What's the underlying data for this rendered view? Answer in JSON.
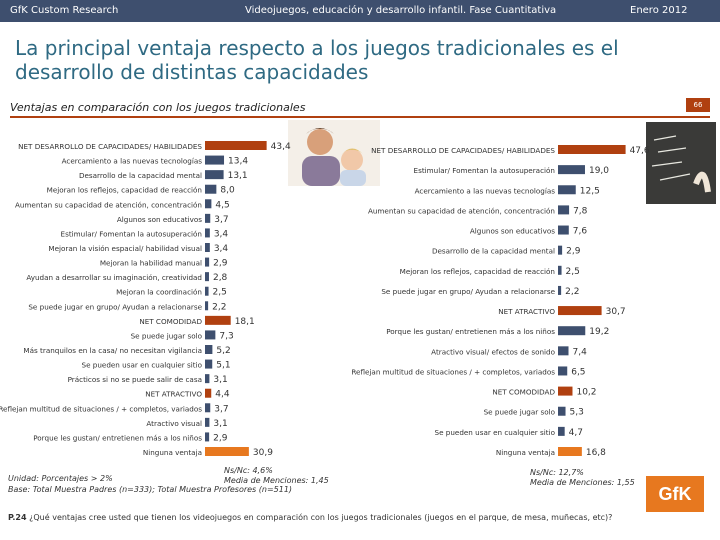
{
  "header": {
    "left": "GfK Custom Research",
    "center": "Videojuegos, educación y desarrollo infantil. Fase Cuantitativa",
    "right": "Enero 2012"
  },
  "title": "La principal ventaja respecto a los juegos tradicionales es el desarrollo de distintas capacidades",
  "section": {
    "label": "Ventajas en comparación con los juegos tradicionales",
    "page": "66"
  },
  "colors": {
    "accent": "#b04010",
    "bar_main": "#3e4f6e",
    "bar_orange": "#e7781f",
    "header": "#3e4f6e",
    "title": "#2f6a83"
  },
  "chart_data": [
    {
      "type": "bar",
      "orientation": "horizontal",
      "group": "Padres",
      "categories": [
        "NET DESARROLLO DE CAPACIDADES/ HABILIDADES",
        "Acercamiento a las nuevas tecnologías",
        "Desarrollo de la capacidad mental",
        "Mejoran los reflejos, capacidad de reacción",
        "Aumentan su capacidad de atención, concentración",
        "Algunos son educativos",
        "Estimular/ Fomentan la autosuperación",
        "Mejoran la visión espacial/ habilidad visual",
        "Mejoran la habilidad manual",
        "Ayudan a desarrollar su imaginación, creatividad",
        "Mejoran la coordinación",
        "Se puede jugar en grupo/ Ayudan a relacionarse",
        "NET COMODIDAD",
        "Se puede jugar solo",
        "Más tranquilos en la casa/ no necesitan vigilancia",
        "Se pueden usar en cualquier sitio",
        "Prácticos si no se puede salir de casa",
        "NET ATRACTIVO",
        "Reflejan multitud de situaciones / + completos, variados",
        "Atractivo visual",
        "Porque les gustan/ entretienen más a los niños",
        "Ninguna ventaja"
      ],
      "values": [
        43.4,
        13.4,
        13.1,
        8.0,
        4.5,
        3.7,
        3.4,
        3.4,
        2.9,
        2.8,
        2.5,
        2.2,
        18.1,
        7.3,
        5.2,
        5.1,
        3.1,
        4.4,
        3.7,
        3.1,
        2.9,
        30.9
      ],
      "labels": [
        "43,4",
        "13,4",
        "13,1",
        "8,0",
        "4,5",
        "3,7",
        "3,4",
        "3,4",
        "2,9",
        "2,8",
        "2,5",
        "2,2",
        "18,1",
        "7,3",
        "5,2",
        "5,1",
        "3,1",
        "4,4",
        "3,7",
        "3,1",
        "2,9",
        "30,9"
      ],
      "kinds": [
        "net",
        "item",
        "item",
        "item",
        "item",
        "item",
        "item",
        "item",
        "item",
        "item",
        "item",
        "item",
        "net",
        "item",
        "item",
        "item",
        "item",
        "net",
        "item",
        "item",
        "item",
        "none"
      ],
      "xlim": [
        0,
        60
      ]
    },
    {
      "type": "bar",
      "orientation": "horizontal",
      "group": "Profesores",
      "categories": [
        "NET DESARROLLO DE CAPACIDADES/ HABILIDADES",
        "Estimular/ Fomentan la autosuperación",
        "Acercamiento a las nuevas tecnologías",
        "Aumentan su capacidad de atención, concentración",
        "Algunos son educativos",
        "Desarrollo de la capacidad mental",
        "Mejoran los reflejos, capacidad de reacción",
        "Se puede jugar en grupo/ Ayudan a relacionarse",
        "NET ATRACTIVO",
        "Porque les gustan/ entretienen más a los niños",
        "Atractivo visual/ efectos de sonido",
        "Reflejan multitud de situaciones / + completos, variados",
        "NET COMODIDAD",
        "Se puede jugar solo",
        "Se pueden usar en cualquier sitio",
        "Ninguna ventaja"
      ],
      "values": [
        47.6,
        19.0,
        12.5,
        7.8,
        7.6,
        2.9,
        2.5,
        2.2,
        30.7,
        19.2,
        7.4,
        6.5,
        10.2,
        5.3,
        4.7,
        16.8
      ],
      "labels": [
        "47,6",
        "19,0",
        "12,5",
        "7,8",
        "7,6",
        "2,9",
        "2,5",
        "2,2",
        "30,7",
        "19,2",
        "7,4",
        "6,5",
        "10,2",
        "5,3",
        "4,7",
        "16,8"
      ],
      "kinds": [
        "net",
        "item",
        "item",
        "item",
        "item",
        "item",
        "item",
        "item",
        "net",
        "item",
        "item",
        "item",
        "net",
        "item",
        "item",
        "none"
      ],
      "xlim": [
        0,
        60
      ]
    }
  ],
  "notes": {
    "ns_left_1": "Ns/Nc: 4,6%",
    "ns_left_2": "Media de Menciones: 1,45",
    "ns_right_1": "Ns/Nc: 12,7%",
    "ns_right_2": "Media de Menciones: 1,55",
    "unit": "Unidad: Porcentajes",
    "threshold": "> 2%",
    "base": "Base: Total Muestra Padres (n=333); Total Muestra Profesores (n=511)",
    "question_code": "P.24",
    "question_text": "¿Qué ventajas cree usted que tienen los videojuegos en comparación con los juegos tradicionales (juegos en el parque, de mesa, muñecas, etc)?"
  },
  "logo": {
    "text": "GfK"
  }
}
